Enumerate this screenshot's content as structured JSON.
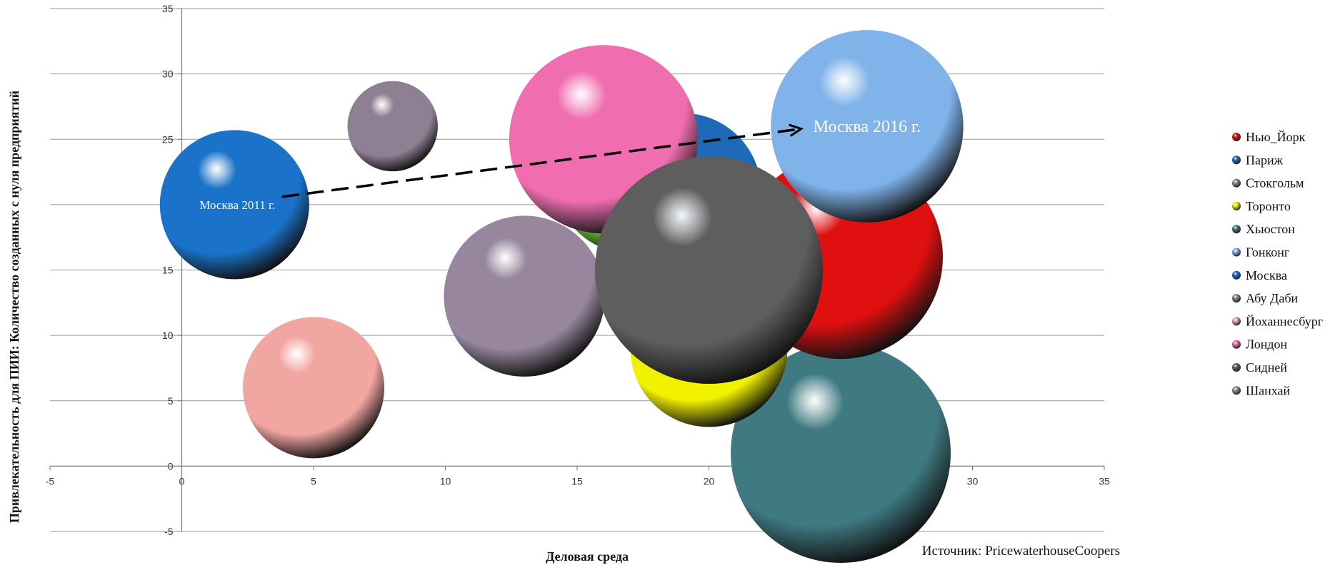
{
  "chart_data": {
    "type": "bubble",
    "xlabel": "Деловая среда",
    "ylabel": "Привлекательность  для ПИИ:  Количество созданных с нуля предприятий",
    "xlim": [
      -5,
      35
    ],
    "ylim": [
      -5,
      35
    ],
    "xticks": [
      -5,
      0,
      5,
      10,
      15,
      20,
      25,
      30,
      35
    ],
    "yticks": [
      -5,
      0,
      5,
      10,
      15,
      20,
      25,
      30,
      35
    ],
    "grid": "horizontal",
    "legend_position": "right",
    "series": [
      {
        "name": "Нью_Йорк",
        "color": "#e01010",
        "x": 25,
        "y": 16,
        "size": 2.6
      },
      {
        "name": "Париж",
        "color": "#1f6ab8",
        "x": 19,
        "y": 21,
        "size": 2.0
      },
      {
        "name": "Стокгольм",
        "color": "#8a8aa0",
        "x": null,
        "y": null,
        "size": null
      },
      {
        "name": "Торонто",
        "color": "#f2f200",
        "x": 20,
        "y": 9,
        "size": 2.0
      },
      {
        "name": "Хьюстон",
        "color": "#3f7a82",
        "x": 25,
        "y": 1,
        "size": 2.8
      },
      {
        "name": "Гонконг",
        "color": "#7fb3ea",
        "x": 26,
        "y": 26,
        "size": 2.45
      },
      {
        "name": "Москва",
        "color": "#1a73c9",
        "x": 2,
        "y": 20,
        "size": 1.9
      },
      {
        "name": "Абу Даби",
        "color": "#8e7f93",
        "x": 8,
        "y": 26,
        "size": 1.15
      },
      {
        "name": "Йоханнесбург",
        "color": "#f2a6a2",
        "x": 5,
        "y": 6,
        "size": 1.8
      },
      {
        "name": "Лондон",
        "color": "#f06eb0",
        "x": 16,
        "y": 25,
        "size": 2.4
      },
      {
        "name": "Сидней",
        "color": "#5e5e5e",
        "x": 20,
        "y": 15,
        "size": 2.9
      },
      {
        "name": "Шанхай",
        "color": "#97869e",
        "x": 13,
        "y": 13,
        "size": 2.05
      },
      {
        "name": "",
        "color": "#74d63a",
        "x": 17,
        "y": 22,
        "size": 1.9
      }
    ],
    "annotations": [
      {
        "text": "Москва 2011 г.",
        "x": 2,
        "y": 20,
        "size": 17
      },
      {
        "text": "Москва 2016 г.",
        "x": 26,
        "y": 26,
        "size": 24
      }
    ],
    "arrow": {
      "from": [
        3.8,
        20.6
      ],
      "to": [
        23.5,
        25.8
      ],
      "style": "dashed"
    },
    "source": "Источник: PricewaterhouseCoopers"
  }
}
